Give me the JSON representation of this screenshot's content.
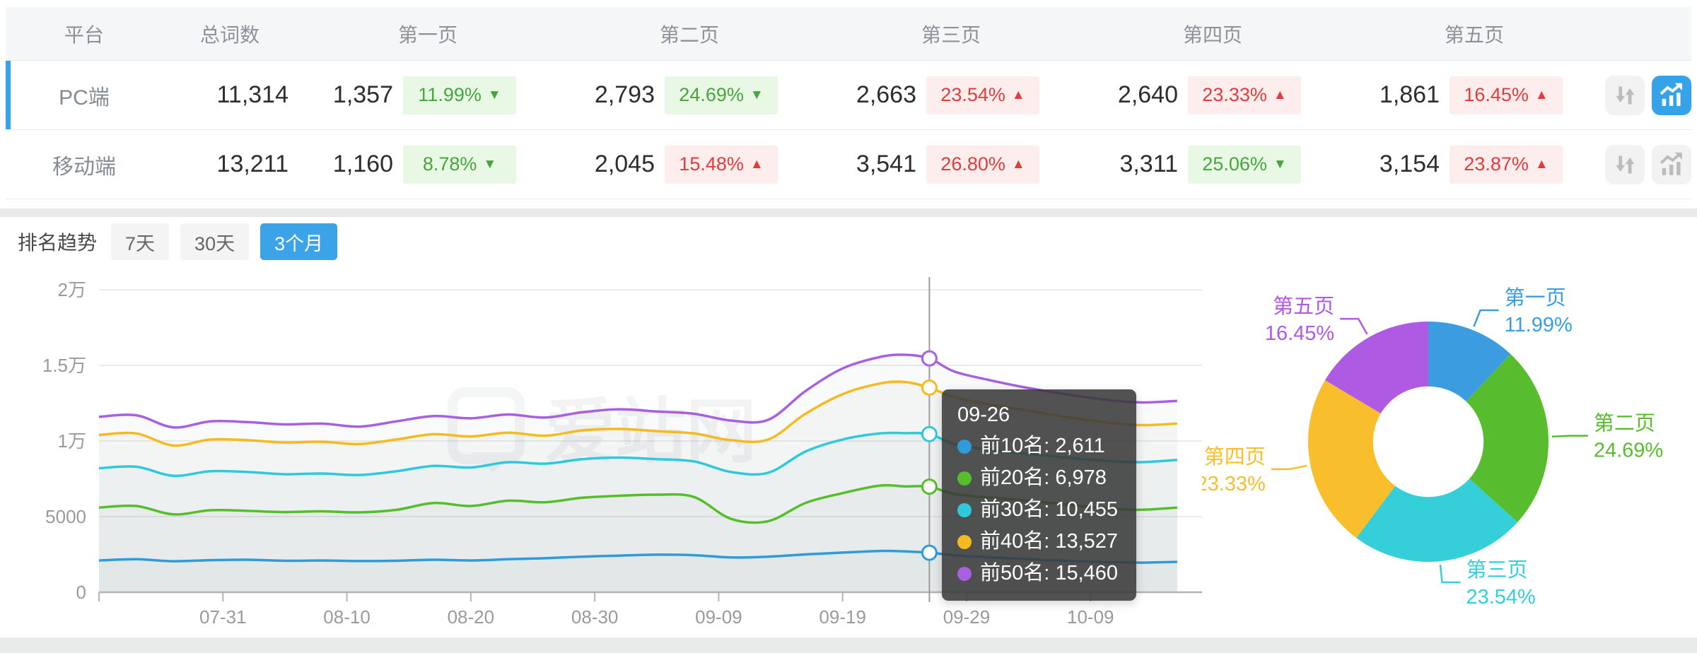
{
  "watermark": "爱站网",
  "table": {
    "headers": {
      "platform": "平台",
      "total": "总词数",
      "page1": "第一页",
      "page2": "第二页",
      "page3": "第三页",
      "page4": "第四页",
      "page5": "第五页"
    },
    "rows": [
      {
        "platform": "PC端",
        "total": "11,314",
        "selected": true,
        "pages": [
          {
            "count": "1,357",
            "pct": "11.99%",
            "arrow": "▼",
            "tone": "good"
          },
          {
            "count": "2,793",
            "pct": "24.69%",
            "arrow": "▼",
            "tone": "good"
          },
          {
            "count": "2,663",
            "pct": "23.54%",
            "arrow": "▲",
            "tone": "bad"
          },
          {
            "count": "2,640",
            "pct": "23.33%",
            "arrow": "▲",
            "tone": "bad"
          },
          {
            "count": "1,861",
            "pct": "16.45%",
            "arrow": "▲",
            "tone": "bad"
          }
        ],
        "trend_active": true
      },
      {
        "platform": "移动端",
        "total": "13,211",
        "selected": false,
        "pages": [
          {
            "count": "1,160",
            "pct": "8.78%",
            "arrow": "▼",
            "tone": "good"
          },
          {
            "count": "2,045",
            "pct": "15.48%",
            "arrow": "▲",
            "tone": "bad"
          },
          {
            "count": "3,541",
            "pct": "26.80%",
            "arrow": "▲",
            "tone": "bad"
          },
          {
            "count": "3,311",
            "pct": "25.06%",
            "arrow": "▼",
            "tone": "good"
          },
          {
            "count": "3,154",
            "pct": "23.87%",
            "arrow": "▲",
            "tone": "bad"
          }
        ],
        "trend_active": false
      }
    ]
  },
  "trend": {
    "title": "排名趋势",
    "tabs": [
      {
        "label": "7天",
        "active": false
      },
      {
        "label": "30天",
        "active": false
      },
      {
        "label": "3个月",
        "active": true
      }
    ]
  },
  "tooltip": {
    "title": "09-26",
    "items": [
      {
        "label": "前10名:",
        "value": "2,611",
        "color": "#2e9bdb"
      },
      {
        "label": "前20名:",
        "value": "6,978",
        "color": "#55be2b"
      },
      {
        "label": "前30名:",
        "value": "10,455",
        "color": "#2fc9de"
      },
      {
        "label": "前40名:",
        "value": "13,527",
        "color": "#f7ba1e"
      },
      {
        "label": "前50名:",
        "value": "15,460",
        "color": "#a85fe1"
      }
    ]
  },
  "colors": {
    "accent_blue": "#36a3e8",
    "badge_good_text": "#45a63c",
    "badge_good_bg": "#e9f7e5",
    "badge_bad_text": "#e23c3c",
    "badge_bad_bg": "#fdeded",
    "area_fill": "rgba(140,150,158,0.05)",
    "grid_line": "#ebebeb",
    "axis_line": "#b3b3b3",
    "axis_text": "#9a9a9a"
  },
  "chart_data": [
    {
      "type": "line",
      "title": "排名趋势 (3个月)",
      "xlabel": "",
      "ylabel": "",
      "ylim": [
        0,
        20000
      ],
      "grid": true,
      "y_ticks": [
        {
          "v": 0,
          "label": "0"
        },
        {
          "v": 5000,
          "label": "5000"
        },
        {
          "v": 10000,
          "label": "1万"
        },
        {
          "v": 15000,
          "label": "1.5万"
        },
        {
          "v": 20000,
          "label": "2万"
        }
      ],
      "x_domain_days": [
        0,
        89
      ],
      "x_ticks": [
        {
          "day": 0,
          "label": ""
        },
        {
          "day": 10,
          "label": "07-31"
        },
        {
          "day": 20,
          "label": "08-10"
        },
        {
          "day": 30,
          "label": "08-20"
        },
        {
          "day": 40,
          "label": "08-30"
        },
        {
          "day": 50,
          "label": "09-09"
        },
        {
          "day": 60,
          "label": "09-19"
        },
        {
          "day": 70,
          "label": "09-29"
        },
        {
          "day": 80,
          "label": "10-09"
        }
      ],
      "days": [
        0,
        3,
        6,
        9,
        12,
        15,
        18,
        21,
        24,
        27,
        30,
        33,
        36,
        39,
        42,
        45,
        48,
        51,
        54,
        57,
        60,
        63,
        65,
        67,
        69,
        72,
        75,
        78,
        81,
        84,
        87
      ],
      "series": [
        {
          "name": "前10名",
          "color": "#2e9bdb",
          "values": [
            2100,
            2180,
            2050,
            2120,
            2150,
            2080,
            2100,
            2060,
            2080,
            2150,
            2100,
            2180,
            2250,
            2350,
            2420,
            2480,
            2450,
            2300,
            2350,
            2500,
            2620,
            2730,
            2700,
            2611,
            2450,
            2300,
            2180,
            2080,
            2000,
            1960,
            2010
          ]
        },
        {
          "name": "前20名",
          "color": "#55be2b",
          "values": [
            5600,
            5700,
            5150,
            5420,
            5380,
            5300,
            5350,
            5280,
            5450,
            5900,
            5700,
            6050,
            5950,
            6250,
            6380,
            6450,
            6300,
            4850,
            4700,
            5900,
            6550,
            7050,
            7000,
            6978,
            6500,
            6250,
            6050,
            5800,
            5550,
            5450,
            5600
          ]
        },
        {
          "name": "前30名",
          "color": "#2fc9de",
          "values": [
            8200,
            8300,
            7700,
            8000,
            7950,
            7800,
            7850,
            7750,
            8000,
            8350,
            8250,
            8600,
            8500,
            8800,
            8900,
            8800,
            8650,
            7950,
            7900,
            9300,
            10100,
            10500,
            10520,
            10455,
            9800,
            9400,
            9150,
            8900,
            8700,
            8600,
            8750
          ]
        },
        {
          "name": "前40名",
          "color": "#f7ba1e",
          "values": [
            10400,
            10500,
            9700,
            10100,
            10050,
            9900,
            9950,
            9800,
            10100,
            10450,
            10300,
            10550,
            10350,
            10700,
            10800,
            10650,
            10500,
            10050,
            10100,
            11800,
            13100,
            13800,
            13900,
            13527,
            12900,
            12400,
            12000,
            11600,
            11250,
            11050,
            11150
          ]
        },
        {
          "name": "前50名",
          "color": "#a85fe1",
          "values": [
            11600,
            11700,
            10900,
            11300,
            11250,
            11100,
            11150,
            10950,
            11300,
            11650,
            11500,
            11750,
            11550,
            11900,
            12100,
            11950,
            11800,
            11350,
            11400,
            13300,
            14800,
            15550,
            15700,
            15460,
            14600,
            14000,
            13500,
            13100,
            12750,
            12550,
            12650
          ]
        }
      ],
      "crosshair": {
        "day": 67,
        "label": "09-26",
        "values": [
          2611,
          6978,
          10455,
          13527,
          15460
        ]
      },
      "legend_position": "tooltip-only"
    },
    {
      "type": "pie",
      "subtype": "donut",
      "labels": [
        "第一页",
        "第二页",
        "第三页",
        "第四页",
        "第五页"
      ],
      "values": [
        11.99,
        24.69,
        23.54,
        23.33,
        16.45
      ],
      "unit": "%",
      "colors": [
        "#3b9de0",
        "#58bd2e",
        "#35cfd9",
        "#f8be2c",
        "#ae5ae3"
      ],
      "start_angle_deg": 0,
      "direction": "clockwise",
      "inner_radius_ratio": 0.46
    }
  ]
}
